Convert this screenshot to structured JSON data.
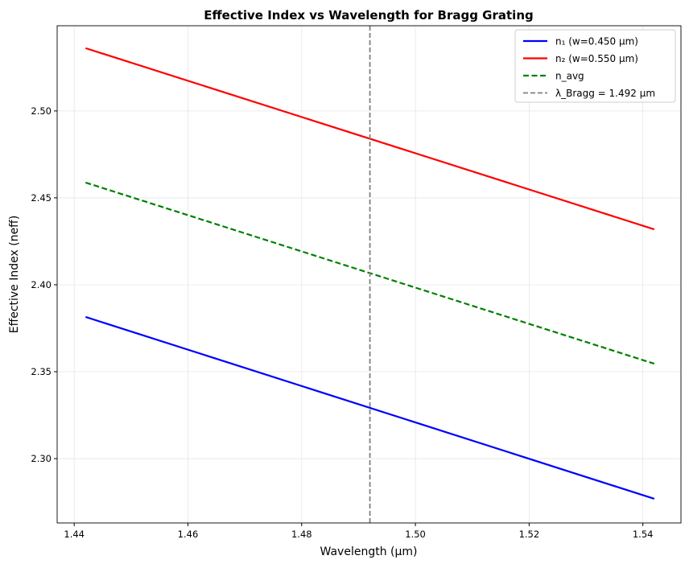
{
  "chart_data": {
    "type": "line",
    "title": "Effective Index vs Wavelength for Bragg Grating",
    "xlabel": "Wavelength (μm)",
    "ylabel": "Effective Index (neff)",
    "xlim": [
      1.437,
      1.5467
    ],
    "ylim": [
      2.263,
      2.549
    ],
    "xticks": [
      1.44,
      1.46,
      1.48,
      1.5,
      1.52,
      1.54
    ],
    "xtick_labels": [
      "1.44",
      "1.46",
      "1.48",
      "1.50",
      "1.52",
      "1.54"
    ],
    "yticks": [
      2.3,
      2.35,
      2.4,
      2.45,
      2.5
    ],
    "ytick_labels": [
      "2.30",
      "2.35",
      "2.40",
      "2.45",
      "2.50"
    ],
    "grid": true,
    "legend_position": "top-right",
    "series": [
      {
        "name": "n₁ (w=0.450 μm)",
        "color": "#0000ff",
        "dash": "solid",
        "x": [
          1.442,
          1.542
        ],
        "y": [
          2.3815,
          2.2769
        ]
      },
      {
        "name": "n₂ (w=0.550 μm)",
        "color": "#ff0000",
        "dash": "solid",
        "x": [
          1.442,
          1.542
        ],
        "y": [
          2.5361,
          2.4319
        ]
      },
      {
        "name": "n_avg",
        "color": "#008000",
        "dash": "dashed",
        "x": [
          1.442,
          1.542
        ],
        "y": [
          2.4588,
          2.3546
        ]
      }
    ],
    "vlines": [
      {
        "name": "λ_Bragg = 1.492 μm",
        "color": "#808080",
        "dash": "dashed",
        "x": 1.492
      }
    ]
  }
}
